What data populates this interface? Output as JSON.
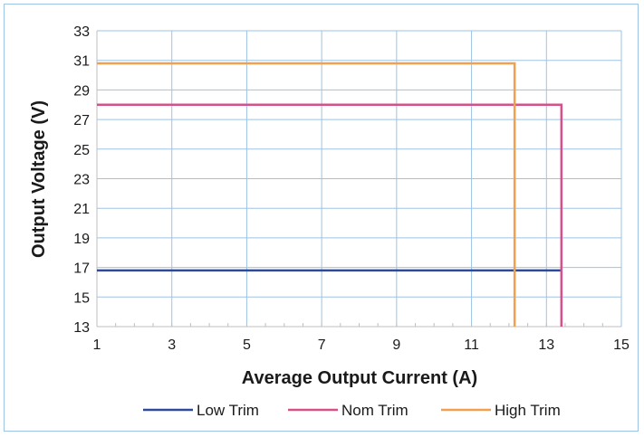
{
  "chart_data": {
    "type": "line",
    "title": "",
    "xlabel": "Average Output Current (A)",
    "ylabel": "Output Voltage (V)",
    "xlim": [
      1,
      15
    ],
    "ylim": [
      13,
      33
    ],
    "xticks": [
      "1",
      "3",
      "5",
      "7",
      "9",
      "11",
      "13",
      "15"
    ],
    "yticks": [
      "13",
      "15",
      "17",
      "19",
      "21",
      "23",
      "25",
      "27",
      "29",
      "31",
      "33"
    ],
    "grid": true,
    "legend_position": "bottom",
    "series": [
      {
        "name": "Low Trim",
        "color": "#2e4a9a",
        "points": [
          [
            1,
            16.8
          ],
          [
            13.4,
            16.8
          ]
        ]
      },
      {
        "name": "Nom Trim",
        "color": "#d6508a",
        "points": [
          [
            1,
            28.0
          ],
          [
            13.4,
            28.0
          ],
          [
            13.4,
            13.0
          ]
        ]
      },
      {
        "name": "High Trim",
        "color": "#f2a04e",
        "points": [
          [
            1,
            30.8
          ],
          [
            12.15,
            30.8
          ],
          [
            12.15,
            13.0
          ]
        ]
      }
    ]
  },
  "colors": {
    "grid": "#9dc3e6",
    "axis": "#bfbfbf"
  }
}
